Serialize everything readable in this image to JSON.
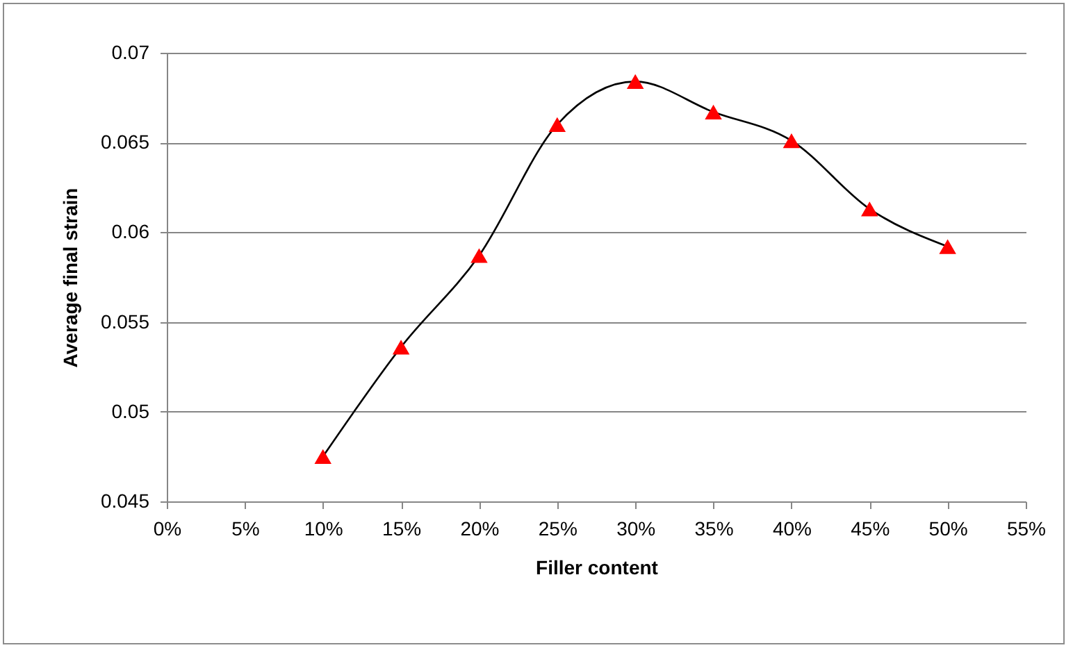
{
  "chart_data": {
    "type": "line",
    "xlabel": "Filler content",
    "ylabel": "Average final  strain",
    "x": [
      10,
      15,
      20,
      25,
      30,
      35,
      40,
      45,
      50
    ],
    "series": [
      {
        "color": "#000000",
        "marker": "none",
        "values": [
          0.0475,
          0.0536,
          0.0587,
          0.066,
          0.0684,
          0.0667,
          0.0651,
          0.0613,
          0.0592
        ]
      },
      {
        "type": "scatter",
        "color": "#ff0000",
        "marker": "triangle",
        "values": [
          0.0475,
          0.0536,
          0.0587,
          0.066,
          0.0684,
          0.0667,
          0.0651,
          0.0613,
          0.0592
        ]
      }
    ],
    "xlim": [
      0,
      55
    ],
    "xticks": [
      {
        "value": 0,
        "label": "0%"
      },
      {
        "value": 5,
        "label": "5%"
      },
      {
        "value": 10,
        "label": "10%"
      },
      {
        "value": 15,
        "label": "15%"
      },
      {
        "value": 20,
        "label": "20%"
      },
      {
        "value": 25,
        "label": "25%"
      },
      {
        "value": 30,
        "label": "30%"
      },
      {
        "value": 35,
        "label": "35%"
      },
      {
        "value": 40,
        "label": "40%"
      },
      {
        "value": 45,
        "label": "45%"
      },
      {
        "value": 50,
        "label": "50%"
      },
      {
        "value": 55,
        "label": "55%"
      }
    ],
    "ylim": [
      0.045,
      0.07
    ],
    "yticks": [
      0.045,
      0.05,
      0.055,
      0.06,
      0.065,
      0.07
    ],
    "grid": "y"
  }
}
